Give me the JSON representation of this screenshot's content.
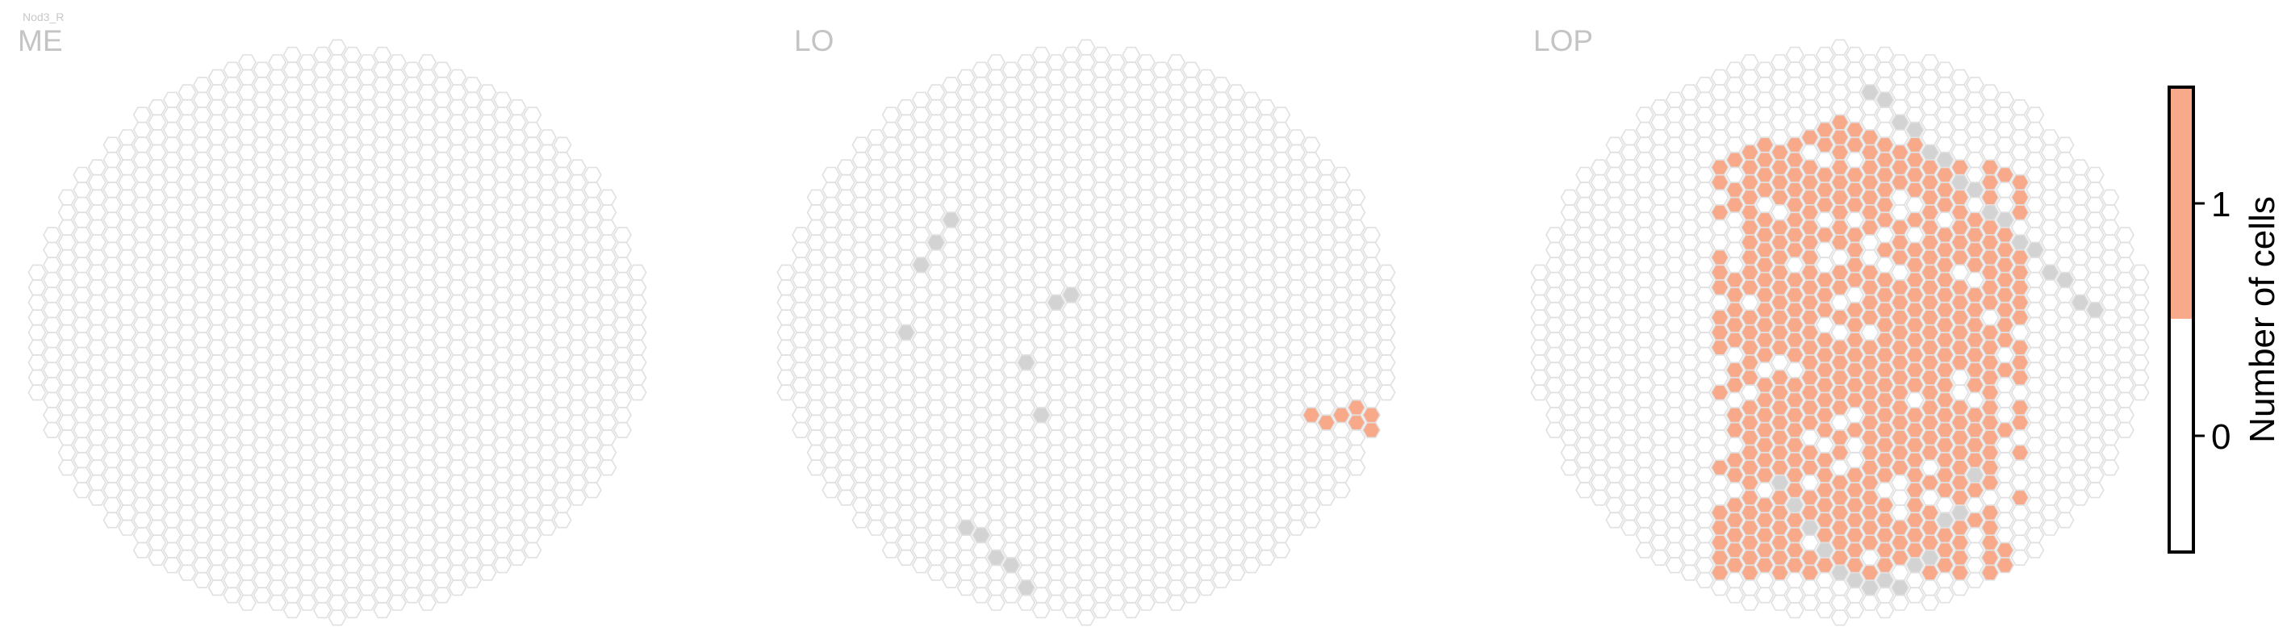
{
  "figure": {
    "suptitle": "Nod3_R"
  },
  "colors": {
    "empty": "#ffffff",
    "one": "#f7a98a",
    "missing": "#d3d3d3",
    "edge": "#e0e0e0",
    "panel_title": "#c4c4c4"
  },
  "chart_data": {
    "type": "heatmap",
    "subtype": "hexagonal columnar grid",
    "suptitle": "Nod3_R",
    "panels": [
      {
        "title": "ME",
        "cells_with_value_1": [],
        "missing_columns": []
      },
      {
        "title": "LO",
        "cells_with_value_1": [
          [
            15,
            -6
          ],
          [
            16,
            -6
          ],
          [
            17,
            -6
          ],
          [
            18,
            -6
          ],
          [
            18,
            -5
          ],
          [
            19,
            -6
          ],
          [
            19,
            -7
          ],
          [
            20,
            -8
          ],
          [
            21,
            -8
          ],
          [
            22,
            -8
          ],
          [
            21,
            -9
          ],
          [
            22,
            -10
          ],
          [
            23,
            -9
          ],
          [
            24,
            -10
          ],
          [
            26,
            -1
          ]
        ],
        "missing_columns": [
          [
            -2,
            2
          ],
          [
            -1,
            2
          ],
          [
            -4,
            -2
          ],
          [
            -3,
            -6
          ],
          [
            -9,
            7
          ],
          [
            -10,
            6
          ],
          [
            -11,
            4
          ],
          [
            -12,
            0
          ],
          [
            -8,
            -13
          ],
          [
            -7,
            -14
          ],
          [
            -6,
            -15
          ],
          [
            -5,
            -16
          ],
          [
            -4,
            -17
          ],
          [
            13,
            -16
          ],
          [
            14,
            -16
          ],
          [
            16,
            -13
          ],
          [
            18,
            -11
          ],
          [
            23,
            -11
          ],
          [
            24,
            -10
          ],
          [
            25,
            -8
          ]
        ]
      },
      {
        "title": "LOP",
        "pct_cells_with_value_1": 47,
        "missing_columns": [
          [
            2,
            16
          ],
          [
            3,
            15
          ],
          [
            4,
            14
          ],
          [
            5,
            13
          ],
          [
            6,
            12
          ],
          [
            7,
            11
          ],
          [
            8,
            10
          ],
          [
            9,
            9
          ],
          [
            10,
            8
          ],
          [
            11,
            7
          ],
          [
            12,
            6
          ],
          [
            13,
            5
          ],
          [
            14,
            4
          ],
          [
            15,
            3
          ],
          [
            16,
            2
          ],
          [
            17,
            1
          ],
          [
            -4,
            -10
          ],
          [
            -3,
            -12
          ],
          [
            -2,
            -13
          ],
          [
            -1,
            -15
          ],
          [
            0,
            -16
          ],
          [
            1,
            -17
          ],
          [
            2,
            -17
          ],
          [
            3,
            -17
          ],
          [
            4,
            -17
          ],
          [
            5,
            -16
          ],
          [
            6,
            -15
          ],
          [
            7,
            -13
          ],
          [
            8,
            -12
          ],
          [
            9,
            -10
          ],
          [
            22,
            -4
          ],
          [
            23,
            -4
          ],
          [
            24,
            -4
          ],
          [
            25,
            -4
          ],
          [
            26,
            -4
          ]
        ]
      }
    ],
    "colorbar": {
      "label": "Number of cells",
      "ticks": [
        0,
        1
      ],
      "range": [
        -0.5,
        1.5
      ],
      "colors": [
        "#ffffff",
        "#f7a98a"
      ]
    }
  }
}
